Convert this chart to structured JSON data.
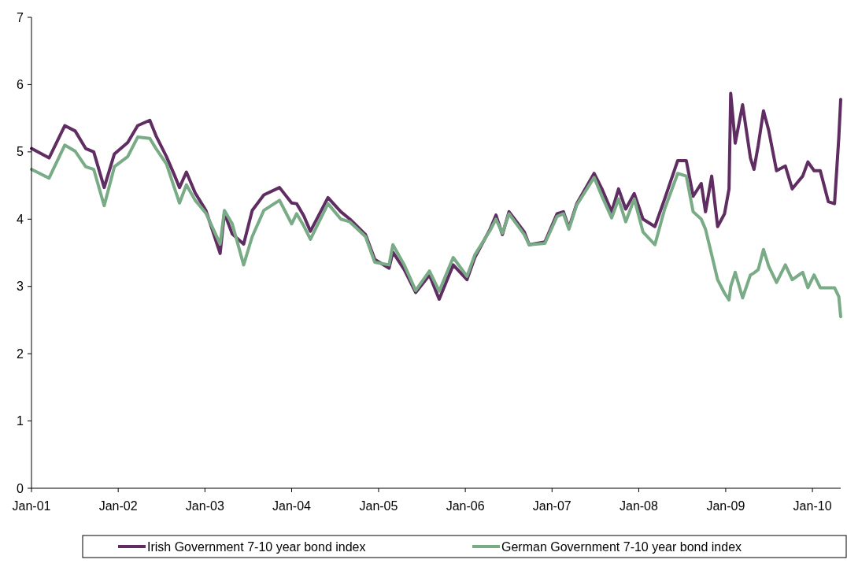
{
  "chart_data": {
    "type": "line",
    "x": [
      "2001-01-01",
      "2001-03-16",
      "2001-05-21",
      "2001-07-04",
      "2001-08-17",
      "2001-09-20",
      "2001-11-03",
      "2001-12-16",
      "2002-02-10",
      "2002-03-24",
      "2002-05-14",
      "2002-06-09",
      "2002-07-23",
      "2002-08-25",
      "2002-09-16",
      "2002-10-15",
      "2002-11-21",
      "2003-01-05",
      "2003-03-06",
      "2003-03-24",
      "2003-04-26",
      "2003-06-13",
      "2003-07-19",
      "2003-09-06",
      "2003-11-11",
      "2004-01-01",
      "2004-01-22",
      "2004-02-21",
      "2004-03-20",
      "2004-06-02",
      "2004-07-26",
      "2004-09-02",
      "2004-11-07",
      "2004-12-16",
      "2005-02-14",
      "2005-03-02",
      "2005-04-19",
      "2005-06-06",
      "2005-08-03",
      "2005-09-13",
      "2005-11-11",
      "2006-01-08",
      "2006-02-10",
      "2006-04-15",
      "2006-05-10",
      "2006-06-06",
      "2006-07-04",
      "2006-09-06",
      "2006-09-27",
      "2006-12-02",
      "2007-01-22",
      "2007-02-18",
      "2007-03-13",
      "2007-04-15",
      "2007-06-27",
      "2007-07-30",
      "2007-09-09",
      "2007-10-08",
      "2007-11-07",
      "2007-12-13",
      "2008-01-19",
      "2008-03-09",
      "2008-04-19",
      "2008-06-13",
      "2008-07-19",
      "2008-08-17",
      "2008-09-20",
      "2008-10-08",
      "2008-11-03",
      "2008-11-28",
      "2008-12-27",
      "2009-01-15",
      "2009-01-22",
      "2009-02-10",
      "2009-03-13",
      "2009-04-15",
      "2009-04-30",
      "2009-05-18",
      "2009-06-09",
      "2009-07-01",
      "2009-08-03",
      "2009-09-09",
      "2009-10-08",
      "2009-11-21",
      "2009-12-13",
      "2010-01-08",
      "2010-02-03",
      "2010-03-09",
      "2010-04-04",
      "2010-04-22",
      "2010-04-30"
    ],
    "series": [
      {
        "name": "Irish Government 7-10 year bond index",
        "color": "#5f2d62",
        "values": [
          5.05,
          4.91,
          5.39,
          5.31,
          5.05,
          5.0,
          4.47,
          4.97,
          5.14,
          5.39,
          5.47,
          5.24,
          4.93,
          4.66,
          4.47,
          4.7,
          4.39,
          4.13,
          3.49,
          4.09,
          3.78,
          3.63,
          4.13,
          4.36,
          4.47,
          4.24,
          4.23,
          4.05,
          3.82,
          4.32,
          4.11,
          4.0,
          3.77,
          3.4,
          3.27,
          3.51,
          3.25,
          2.91,
          3.17,
          2.81,
          3.32,
          3.1,
          3.43,
          3.85,
          4.06,
          3.77,
          4.11,
          3.81,
          3.62,
          3.66,
          4.08,
          4.11,
          3.87,
          4.23,
          4.68,
          4.45,
          4.11,
          4.45,
          4.15,
          4.38,
          4.0,
          3.89,
          4.3,
          4.87,
          4.87,
          4.34,
          4.53,
          4.11,
          4.64,
          3.89,
          4.08,
          4.45,
          5.87,
          5.13,
          5.7,
          4.91,
          4.74,
          5.1,
          5.61,
          5.32,
          4.72,
          4.79,
          4.45,
          4.64,
          4.85,
          4.72,
          4.72,
          4.26,
          4.23,
          5.21,
          5.78
        ]
      },
      {
        "name": "German Government 7-10 year bond index",
        "color": "#79ab86",
        "values": [
          4.74,
          4.61,
          5.1,
          5.01,
          4.78,
          4.74,
          4.2,
          4.78,
          4.93,
          5.22,
          5.2,
          5.05,
          4.82,
          4.47,
          4.24,
          4.51,
          4.28,
          4.09,
          3.63,
          4.13,
          3.93,
          3.32,
          3.74,
          4.13,
          4.28,
          3.93,
          4.08,
          3.9,
          3.7,
          4.23,
          4.0,
          3.96,
          3.74,
          3.36,
          3.32,
          3.62,
          3.32,
          2.94,
          3.23,
          2.93,
          3.43,
          3.15,
          3.47,
          3.83,
          4.0,
          3.79,
          4.08,
          3.77,
          3.62,
          3.64,
          4.04,
          4.08,
          3.85,
          4.21,
          4.62,
          4.34,
          4.02,
          4.3,
          3.96,
          4.3,
          3.81,
          3.62,
          4.15,
          4.68,
          4.64,
          4.11,
          4.0,
          3.85,
          3.47,
          3.1,
          2.9,
          2.8,
          3.0,
          3.21,
          2.83,
          3.17,
          3.2,
          3.25,
          3.55,
          3.3,
          3.06,
          3.32,
          3.1,
          3.21,
          2.98,
          3.17,
          2.98,
          2.98,
          2.98,
          2.85,
          2.55
        ]
      }
    ],
    "xlim": [
      "2001-01-01",
      "2010-04-30"
    ],
    "xticks": [
      {
        "value": "2001-01-01",
        "label": "Jan-01"
      },
      {
        "value": "2002-01-01",
        "label": "Jan-02"
      },
      {
        "value": "2003-01-01",
        "label": "Jan-03"
      },
      {
        "value": "2004-01-01",
        "label": "Jan-04"
      },
      {
        "value": "2005-01-01",
        "label": "Jan-05"
      },
      {
        "value": "2006-01-01",
        "label": "Jan-06"
      },
      {
        "value": "2007-01-01",
        "label": "Jan-07"
      },
      {
        "value": "2008-01-01",
        "label": "Jan-08"
      },
      {
        "value": "2009-01-01",
        "label": "Jan-09"
      },
      {
        "value": "2010-01-01",
        "label": "Jan-10"
      }
    ],
    "ylim": [
      0,
      7
    ],
    "yticks": [
      0,
      1,
      2,
      3,
      4,
      5,
      6,
      7
    ],
    "legend": "bottom",
    "line_style": "solid"
  }
}
